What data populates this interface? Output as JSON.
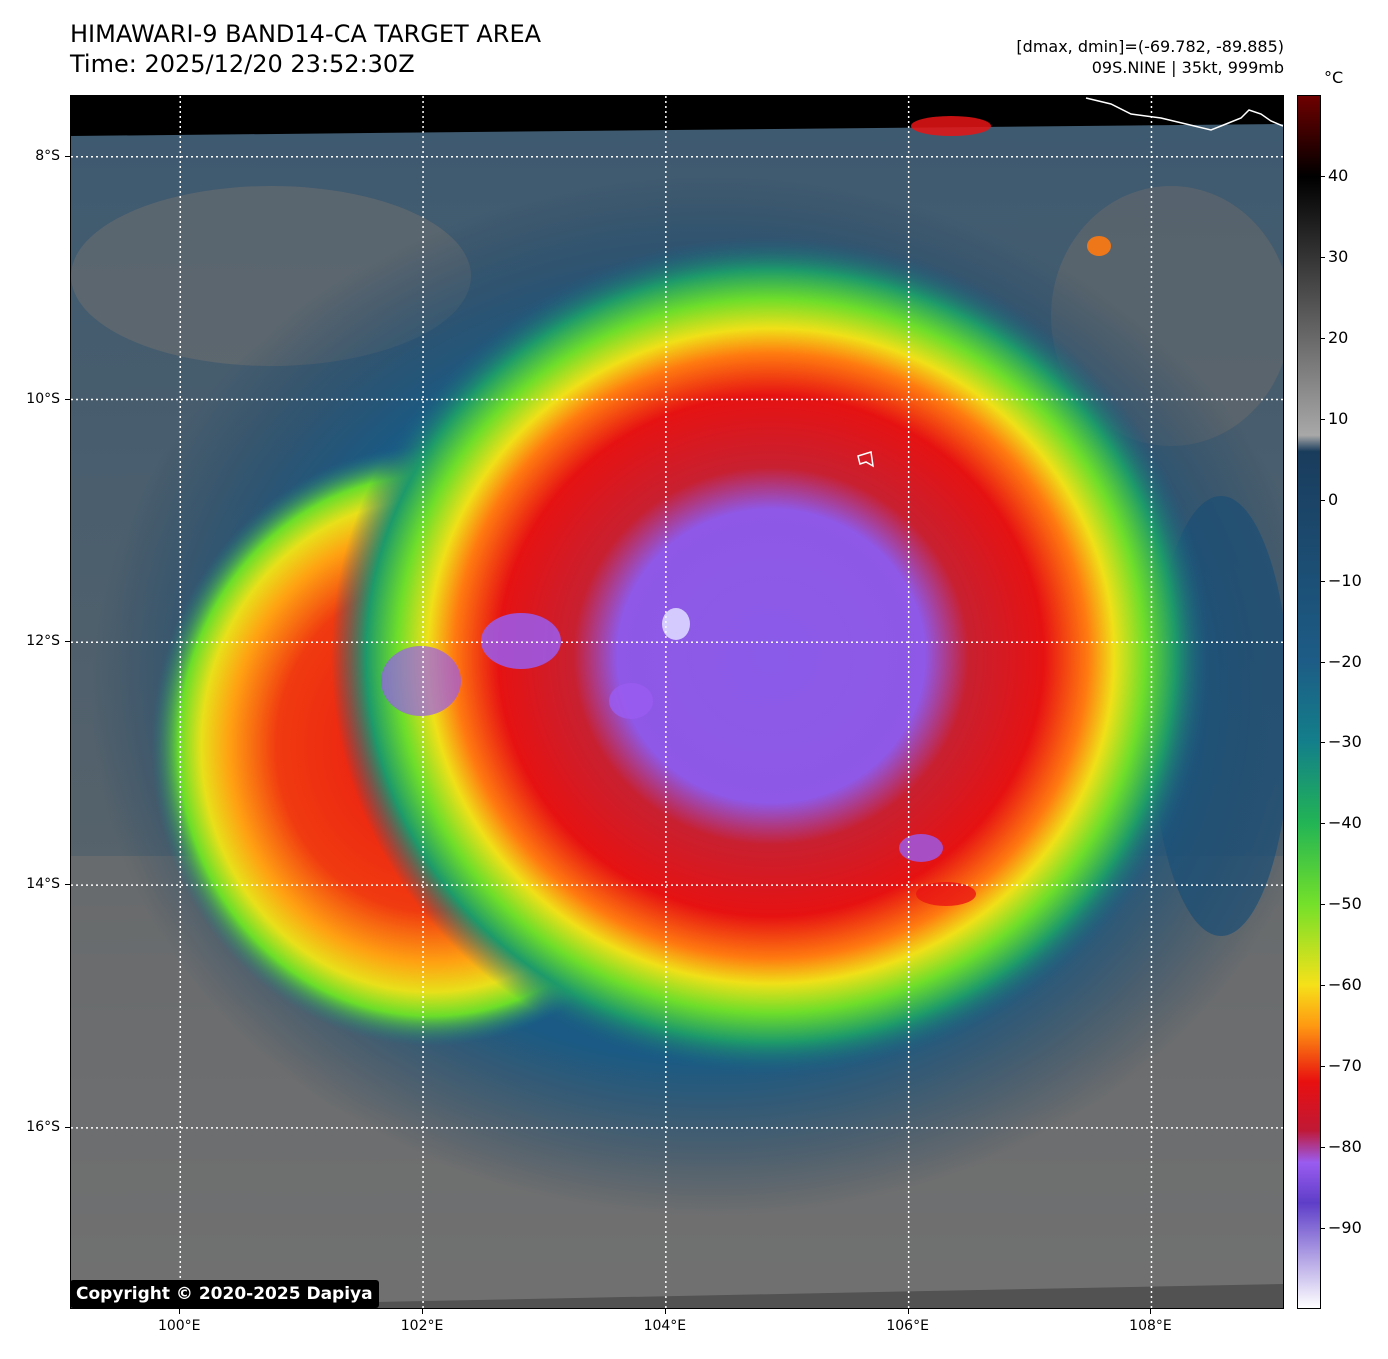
{
  "title": {
    "line1": "HIMAWARI-9 BAND14-CA TARGET AREA",
    "line2": "Time: 2025/12/20 23:52:30Z"
  },
  "info": {
    "line1": "[dmax, dmin]=(-69.782, -89.885)",
    "line2": "09S.NINE | 35kt, 999mb"
  },
  "copyright": "Copyright © 2020-2025 Dapiya",
  "map": {
    "lon_range": [
      99.1,
      109.1
    ],
    "lat_range": [
      -17.5,
      -7.5
    ],
    "lat_ticks": [
      {
        "value": -8,
        "label": "8°S"
      },
      {
        "value": -10,
        "label": "10°S"
      },
      {
        "value": -12,
        "label": "12°S"
      },
      {
        "value": -14,
        "label": "14°S"
      },
      {
        "value": -16,
        "label": "16°S"
      }
    ],
    "lon_ticks": [
      {
        "value": 100,
        "label": "100°E"
      },
      {
        "value": 102,
        "label": "102°E"
      },
      {
        "value": 104,
        "label": "104°E"
      },
      {
        "value": 106,
        "label": "106°E"
      },
      {
        "value": 108,
        "label": "108°E"
      }
    ],
    "gridlines": "dotted white",
    "storm_center": {
      "lon": 104.6,
      "lat": -11.7
    }
  },
  "colorbar": {
    "unit": "°C",
    "range": [
      -100,
      50
    ],
    "ticks": [
      {
        "value": 40,
        "label": "40"
      },
      {
        "value": 30,
        "label": "30"
      },
      {
        "value": 20,
        "label": "20"
      },
      {
        "value": 10,
        "label": "10"
      },
      {
        "value": 0,
        "label": "0"
      },
      {
        "value": -10,
        "label": "−10"
      },
      {
        "value": -20,
        "label": "−20"
      },
      {
        "value": -30,
        "label": "−30"
      },
      {
        "value": -40,
        "label": "−40"
      },
      {
        "value": -50,
        "label": "−50"
      },
      {
        "value": -60,
        "label": "−60"
      },
      {
        "value": -70,
        "label": "−70"
      },
      {
        "value": -80,
        "label": "−80"
      },
      {
        "value": -90,
        "label": "−90"
      }
    ],
    "stops": [
      {
        "value": 50,
        "color": "#6e0000"
      },
      {
        "value": 40,
        "color": "#000000"
      },
      {
        "value": 8,
        "color": "#a8a8a8"
      },
      {
        "value": 6,
        "color": "#1a3c5c"
      },
      {
        "value": -20,
        "color": "#1d5c86"
      },
      {
        "value": -30,
        "color": "#137f8a"
      },
      {
        "value": -40,
        "color": "#22b455"
      },
      {
        "value": -50,
        "color": "#74e02a"
      },
      {
        "value": -60,
        "color": "#f5e11a"
      },
      {
        "value": -65,
        "color": "#ff9a12"
      },
      {
        "value": -72,
        "color": "#e81010"
      },
      {
        "value": -78,
        "color": "#c01835"
      },
      {
        "value": -82,
        "color": "#9a5cf0"
      },
      {
        "value": -87,
        "color": "#5e3ec8"
      },
      {
        "value": -100,
        "color": "#ffffff"
      }
    ]
  }
}
